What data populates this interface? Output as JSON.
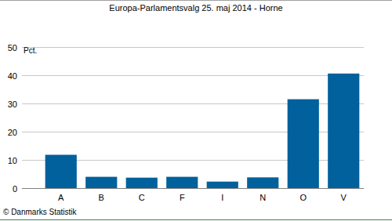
{
  "chart_data": {
    "type": "bar",
    "title": "Europa-Parlamentsvalg 25. maj 2014 - Horne",
    "y_label": "Pct.",
    "source": "© Danmarks Statistik",
    "categories": [
      "A",
      "B",
      "C",
      "F",
      "I",
      "N",
      "O",
      "V"
    ],
    "values": [
      11.8,
      4.0,
      3.7,
      4.0,
      2.3,
      3.8,
      31.5,
      40.6
    ],
    "color": "#00619c",
    "ylim": [
      0,
      50
    ],
    "yticks": [
      0,
      10,
      20,
      30,
      40,
      50
    ],
    "grid": true
  }
}
